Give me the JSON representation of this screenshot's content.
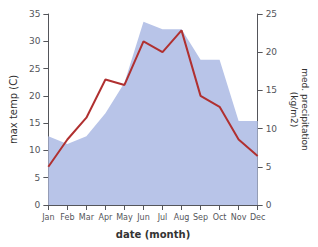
{
  "chart_data": {
    "type": "line",
    "categories": [
      "Jan",
      "Feb",
      "Mar",
      "Apr",
      "May",
      "Jun",
      "Jul",
      "Aug",
      "Sep",
      "Oct",
      "Nov",
      "Dec"
    ],
    "xlabel": "date (month)",
    "ylabel": "max temp (C)",
    "y2label": "med. precipitation\n(kg/m2)",
    "series": [
      {
        "type": "area",
        "color": "#b8c4e8",
        "axis": "y2",
        "values": [
          9,
          8,
          9,
          12,
          16,
          24,
          23,
          23,
          19,
          19,
          11,
          11
        ]
      },
      {
        "type": "line",
        "color": "#b03030",
        "values": [
          7,
          12,
          16,
          23,
          22,
          30,
          28,
          32,
          20,
          18,
          12,
          9
        ]
      }
    ],
    "ylim": [
      0,
      35
    ],
    "yticks": [
      0,
      5,
      10,
      15,
      20,
      25,
      30,
      35
    ],
    "y2lim": [
      0,
      25
    ],
    "y2ticks": [
      0,
      5,
      10,
      15,
      20,
      25
    ],
    "grid": false
  }
}
